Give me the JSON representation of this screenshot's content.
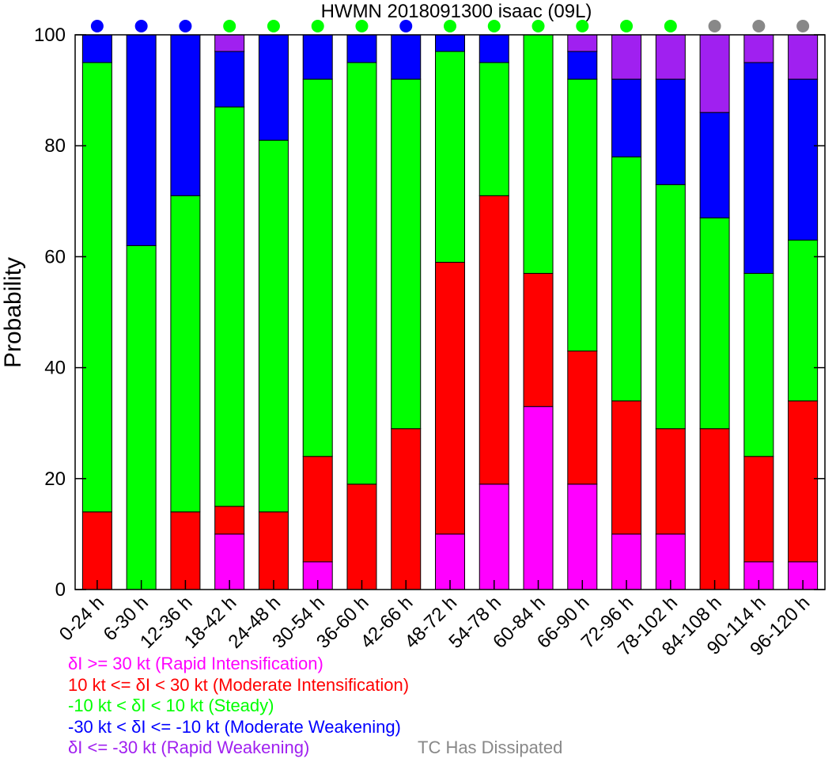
{
  "chart_data": {
    "type": "bar",
    "stacked": true,
    "title": "HWMN 2018091300 isaac (09L)",
    "xlabel": "",
    "ylabel": "Probability",
    "ylim": [
      0,
      100
    ],
    "yticks": [
      0,
      20,
      40,
      60,
      80,
      100
    ],
    "categories": [
      "0-24 h",
      "6-30 h",
      "12-36 h",
      "18-42 h",
      "24-48 h",
      "30-54 h",
      "36-60 h",
      "42-66 h",
      "48-72 h",
      "54-78 h",
      "60-84 h",
      "66-90 h",
      "72-96 h",
      "78-102 h",
      "84-108 h",
      "90-114 h",
      "96-120 h"
    ],
    "series": [
      {
        "name": "δI >= 30 kt (Rapid Intensification)",
        "color": "#ff00ff",
        "values": [
          0,
          0,
          0,
          10,
          0,
          5,
          0,
          0,
          10,
          19,
          33,
          19,
          10,
          10,
          0,
          5,
          5
        ]
      },
      {
        "name": "10 kt <= δI < 30 kt (Moderate Intensification)",
        "color": "#ff0000",
        "values": [
          14,
          0,
          14,
          5,
          14,
          19,
          19,
          29,
          49,
          52,
          24,
          24,
          24,
          19,
          29,
          19,
          29
        ]
      },
      {
        "name": "-10 kt < δI < 10 kt (Steady)",
        "color": "#00ff00",
        "values": [
          81,
          62,
          57,
          72,
          67,
          68,
          76,
          63,
          38,
          24,
          43,
          49,
          44,
          44,
          38,
          33,
          29
        ]
      },
      {
        "name": "-30 kt < δI <= -10 kt (Moderate Weakening)",
        "color": "#0000ff",
        "values": [
          5,
          38,
          29,
          10,
          19,
          8,
          5,
          8,
          3,
          5,
          0,
          5,
          14,
          19,
          19,
          38,
          29
        ]
      },
      {
        "name": "δI <= -30 kt (Rapid Weakening)",
        "color": "#a020f0",
        "values": [
          0,
          0,
          0,
          3,
          0,
          0,
          0,
          0,
          0,
          0,
          0,
          3,
          8,
          8,
          14,
          5,
          8
        ]
      }
    ],
    "top_markers": [
      "blue",
      "blue",
      "blue",
      "green",
      "green",
      "green",
      "green",
      "blue",
      "green",
      "green",
      "green",
      "green",
      "green",
      "green",
      "gray",
      "gray",
      "gray"
    ],
    "marker_colors": {
      "blue": "#0000ff",
      "green": "#00ff00",
      "gray": "#888888"
    },
    "dissipated_label": "TC Has Dissipated",
    "grid": false,
    "legend_position": "bottom-left"
  }
}
